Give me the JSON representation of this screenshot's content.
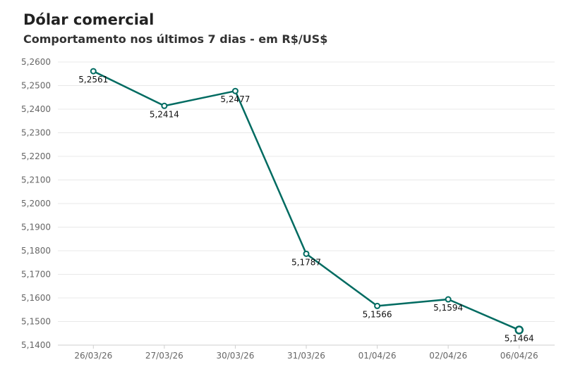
{
  "chart_data": {
    "type": "line",
    "title": "Dólar comercial",
    "subtitle": "Comportamento nos últimos 7 dias - em R$/US$",
    "categories": [
      "26/03/26",
      "27/03/26",
      "30/03/26",
      "31/03/26",
      "01/04/26",
      "02/04/26",
      "06/04/26"
    ],
    "series": [
      {
        "values": [
          5.2561,
          5.2414,
          5.2477,
          5.1787,
          5.1566,
          5.1594,
          5.1464
        ],
        "labels": [
          "5,2561",
          "5,2414",
          "5,2477",
          "5,1787",
          "5,1566",
          "5,1594",
          "5,1464"
        ],
        "color": "#006b61"
      }
    ],
    "ylim": [
      5.14,
      5.26
    ],
    "yticks": [
      5.26,
      5.25,
      5.24,
      5.23,
      5.22,
      5.21,
      5.2,
      5.19,
      5.18,
      5.17,
      5.16,
      5.15,
      5.14
    ],
    "ytick_labels": [
      "5,2600",
      "5,2500",
      "5,2400",
      "5,2300",
      "5,2200",
      "5,2100",
      "5,2000",
      "5,1900",
      "5,1800",
      "5,1700",
      "5,1600",
      "5,1500",
      "5,1400"
    ],
    "grid": true,
    "legend": "none"
  }
}
